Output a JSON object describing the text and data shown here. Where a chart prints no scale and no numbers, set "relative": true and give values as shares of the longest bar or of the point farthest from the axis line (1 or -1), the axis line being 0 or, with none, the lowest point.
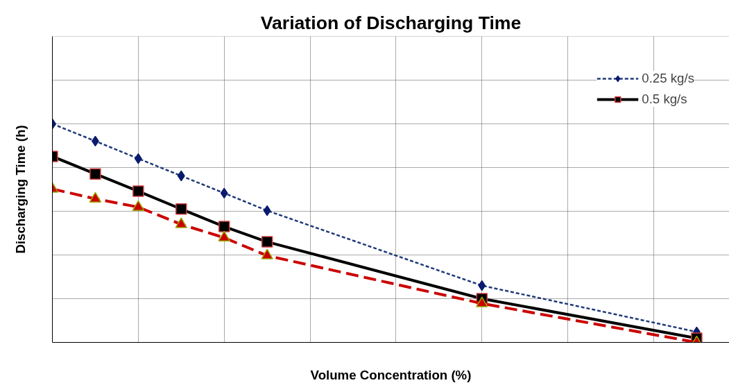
{
  "chart_data": {
    "type": "line",
    "title": "Variation of Discharging Time",
    "xlabel": "Volume Concentration (%)",
    "ylabel": "Discharging Time (h)",
    "relative": true,
    "grid": true,
    "legend": "top right",
    "categories": [
      null,
      null,
      null,
      null,
      null,
      null,
      null,
      null,
      null,
      null,
      null,
      null,
      null,
      null,
      null,
      null
    ],
    "series": [
      {
        "name": "0.25 kg/s",
        "color": "#1f3a78",
        "marker": "diamond",
        "line_style": "dotted",
        "values": [
          1,
          0.921,
          0.841,
          0.762,
          0.683,
          0.603,
          null,
          null,
          null,
          null,
          0.26,
          null,
          null,
          null,
          null,
          0.048
        ]
      },
      {
        "name": "0.5 kg/s",
        "color": "#000000",
        "marker": "square",
        "line_style": "solid",
        "values": [
          0.851,
          0.771,
          0.692,
          0.61,
          0.53,
          0.46,
          null,
          null,
          null,
          null,
          0.2,
          null,
          null,
          null,
          null,
          0.019
        ]
      },
      {
        "color": "#cc0000",
        "marker": "triangle",
        "line_style": "dashed",
        "values": [
          0.702,
          0.657,
          0.619,
          0.54,
          0.479,
          0.397,
          null,
          null,
          null,
          null,
          0.178,
          null,
          null,
          null,
          null,
          0.0
        ]
      }
    ]
  }
}
